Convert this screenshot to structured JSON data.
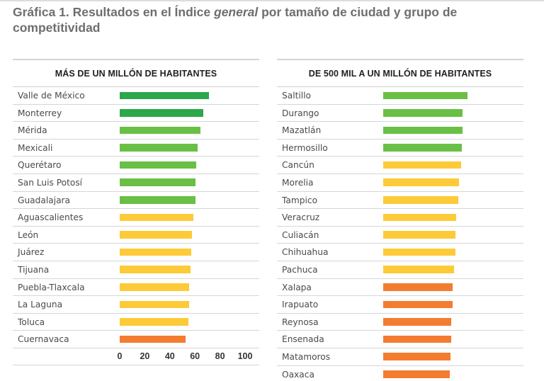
{
  "title_parts": {
    "before": "Gráfica 1. Resultados en el Índice ",
    "italic": "general",
    "after": " por tamaño de ciudad y grupo de competitividad"
  },
  "colors": {
    "dark_green": "#2ca84a",
    "light_green": "#6abf45",
    "yellow": "#fdca38",
    "orange": "#f47c30"
  },
  "chart_data": [
    {
      "type": "bar",
      "orientation": "horizontal",
      "title": "MÁS DE UN MILLÓN DE HABITANTES",
      "xlim": [
        0,
        100
      ],
      "xticks": [
        "0",
        "20",
        "40",
        "60",
        "80",
        "100"
      ],
      "grid": false,
      "categories": [
        "Valle de México",
        "Monterrey",
        "Mérida",
        "Mexicali",
        "Querétaro",
        "San Luis Potosí",
        "Guadalajara",
        "Aguascalientes",
        "León",
        "Juárez",
        "Tijuana",
        "Puebla-Tlaxcala",
        "La Laguna",
        "Toluca",
        "Cuernavaca"
      ],
      "values": [
        71.2,
        66.7,
        64.4,
        62.1,
        61.0,
        60.7,
        60.3,
        58.6,
        57.6,
        57.2,
        56.3,
        55.2,
        55.1,
        54.6,
        52.5
      ],
      "groups": [
        "dark_green",
        "dark_green",
        "light_green",
        "light_green",
        "light_green",
        "light_green",
        "light_green",
        "yellow",
        "yellow",
        "yellow",
        "yellow",
        "yellow",
        "yellow",
        "yellow",
        "orange"
      ]
    },
    {
      "type": "bar",
      "orientation": "horizontal",
      "title": "DE 500 MIL A UN MILLÓN DE HABITANTES",
      "xlim": [
        0,
        100
      ],
      "grid": false,
      "categories": [
        "Saltillo",
        "Durango",
        "Mazatlán",
        "Hermosillo",
        "Cancún",
        "Morelia",
        "Tampico",
        "Veracruz",
        "Culiacán",
        "Chihuahua",
        "Pachuca",
        "Xalapa",
        "Irapuato",
        "Reynosa",
        "Ensenada",
        "Matamoros",
        "Oaxaca"
      ],
      "values": [
        67.4,
        63.3,
        63.2,
        62.9,
        62.1,
        60.6,
        59.7,
        58.2,
        57.8,
        57.8,
        56.5,
        55.6,
        55.2,
        54.4,
        54.4,
        53.9,
        52.9
      ],
      "groups": [
        "light_green",
        "light_green",
        "light_green",
        "light_green",
        "yellow",
        "yellow",
        "yellow",
        "yellow",
        "yellow",
        "yellow",
        "yellow",
        "orange",
        "orange",
        "orange",
        "orange",
        "orange",
        "orange"
      ]
    }
  ]
}
